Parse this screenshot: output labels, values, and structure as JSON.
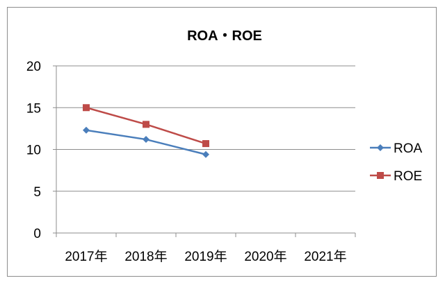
{
  "chart_data": {
    "type": "line",
    "title": "ROA・ROE",
    "categories": [
      "2017年",
      "2018年",
      "2019年",
      "2020年",
      "2021年"
    ],
    "ylim": [
      0,
      20
    ],
    "yticks": [
      0,
      5,
      10,
      15,
      20
    ],
    "grid": true,
    "legend_position": "right",
    "series": [
      {
        "name": "ROA",
        "color": "#4a7ebb",
        "marker": "diamond",
        "values": [
          12.3,
          11.2,
          9.4,
          null,
          null
        ]
      },
      {
        "name": "ROE",
        "color": "#be4b48",
        "marker": "square",
        "values": [
          15.0,
          13.0,
          10.7,
          null,
          null
        ]
      }
    ]
  }
}
